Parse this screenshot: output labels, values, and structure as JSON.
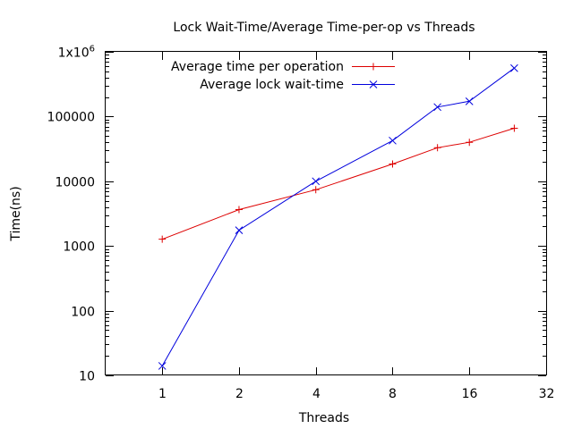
{
  "chart_data": {
    "type": "line",
    "title": "Lock Wait-Time/Average Time-per-op vs Threads",
    "xlabel": "Threads",
    "ylabel": "Time(ns)",
    "xscale": "log2",
    "yscale": "log10",
    "xlim": [
      0.6,
      32
    ],
    "ylim": [
      10,
      1000000
    ],
    "x_ticks": [
      {
        "value": 1,
        "label": "1"
      },
      {
        "value": 2,
        "label": "2"
      },
      {
        "value": 4,
        "label": "4"
      },
      {
        "value": 8,
        "label": "8"
      },
      {
        "value": 16,
        "label": "16"
      },
      {
        "value": 32,
        "label": "32"
      }
    ],
    "y_ticks": [
      {
        "value": 10,
        "label": "10"
      },
      {
        "value": 100,
        "label": "100"
      },
      {
        "value": 1000,
        "label": "1000"
      },
      {
        "value": 10000,
        "label": "10000"
      },
      {
        "value": 100000,
        "label": "100000"
      },
      {
        "value": 1000000,
        "label": "1x10",
        "sup": "6"
      }
    ],
    "legend_position": "top-left",
    "series": [
      {
        "name": "Average time per operation",
        "color": "#dd0000",
        "marker": "plus",
        "points": [
          {
            "x": 1,
            "y": 1270
          },
          {
            "x": 2,
            "y": 3650
          },
          {
            "x": 4,
            "y": 7400
          },
          {
            "x": 8,
            "y": 18500
          },
          {
            "x": 12,
            "y": 33000
          },
          {
            "x": 16,
            "y": 40000
          },
          {
            "x": 24,
            "y": 66000
          }
        ]
      },
      {
        "name": "Average lock wait-time",
        "color": "#0000dd",
        "marker": "cross",
        "points": [
          {
            "x": 1,
            "y": 14
          },
          {
            "x": 2,
            "y": 1750
          },
          {
            "x": 4,
            "y": 10000
          },
          {
            "x": 8,
            "y": 42500
          },
          {
            "x": 12,
            "y": 140000
          },
          {
            "x": 16,
            "y": 172000
          },
          {
            "x": 24,
            "y": 560000
          }
        ]
      }
    ]
  }
}
